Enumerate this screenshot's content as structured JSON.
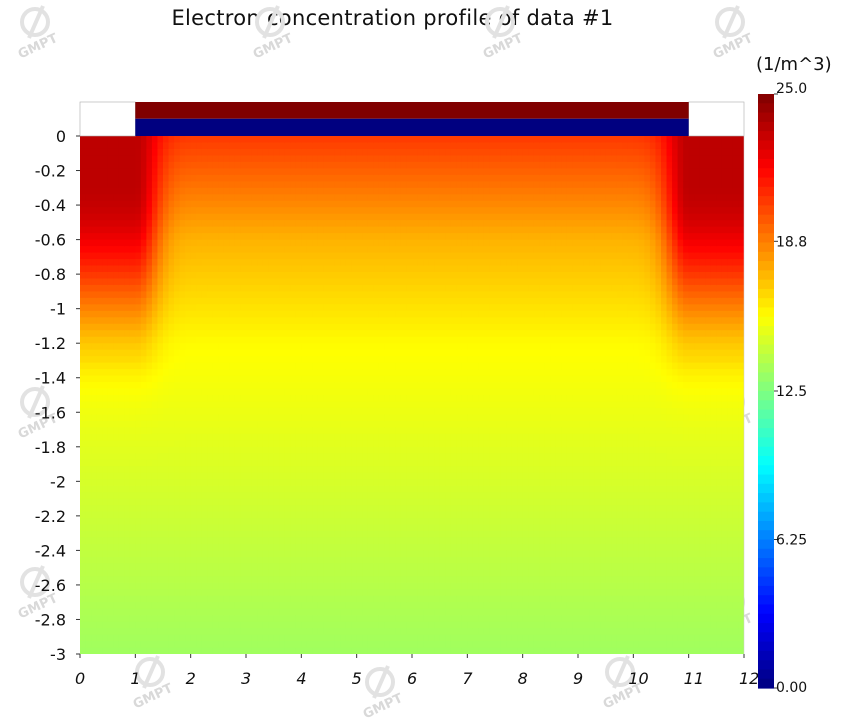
{
  "chart_data": {
    "type": "heatmap",
    "title": "Electron concentration profile of data #1",
    "xlabel": "",
    "ylabel": "",
    "xlim": [
      0,
      12
    ],
    "ylim": [
      -3,
      0.2
    ],
    "x_ticks": [
      "0",
      "1",
      "2",
      "3",
      "4",
      "5",
      "6",
      "7",
      "8",
      "9",
      "10",
      "11",
      "12"
    ],
    "y_ticks": [
      "0",
      "-0.2",
      "-0.4",
      "-0.6",
      "-0.8",
      "-1",
      "-1.2",
      "-1.4",
      "-1.6",
      "-1.8",
      "-2",
      "-2.2",
      "-2.4",
      "-2.6",
      "-2.8",
      "-3"
    ],
    "colorbar": {
      "unit": "(1/m^3)",
      "min": 0,
      "max": 25,
      "tick_labels": [
        "25.0",
        "18.8",
        "12.5",
        "6.25",
        "0.00"
      ],
      "colormap": "jet"
    },
    "regions": [
      {
        "x": [
          0,
          1
        ],
        "y": [
          0,
          0.2
        ],
        "value": null
      },
      {
        "x": [
          11,
          12
        ],
        "y": [
          0,
          0.2
        ],
        "value": null
      },
      {
        "x": [
          1,
          11
        ],
        "y": [
          0.1,
          0.2
        ],
        "value": 25
      },
      {
        "x": [
          1,
          11
        ],
        "y": [
          0,
          0.1
        ],
        "value": 0
      }
    ],
    "field": {
      "surface_value": 20.5,
      "corner_value": 23.5,
      "corner_x_extent": [
        [
          0,
          1
        ],
        [
          11,
          12
        ]
      ],
      "mid_depth_value": 17.3,
      "bottom_value": 13.3
    }
  },
  "watermark": "GMPT",
  "colors": {
    "background": "#ffffff",
    "text": "#111111",
    "watermark": "#dcdcdc"
  }
}
